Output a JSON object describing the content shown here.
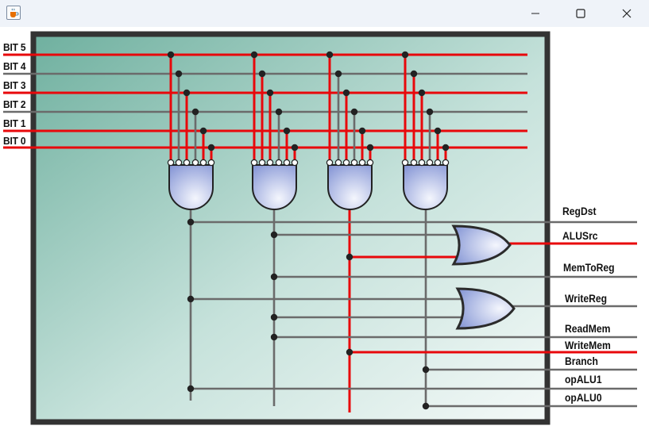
{
  "window": {
    "app_icon": "java-cup-icon",
    "minimize_icon": "minimize-icon",
    "maximize_icon": "maximize-icon",
    "close_icon": "close-icon"
  },
  "inputs": [
    "BIT 5",
    "BIT 4",
    "BIT 3",
    "BIT 2",
    "BIT 1",
    "BIT 0"
  ],
  "outputs": [
    "RegDst",
    "ALUSrc",
    "MemToReg",
    "WriteReg",
    "ReadMem",
    "WriteMem",
    "Branch",
    "opALU1",
    "opALU0"
  ],
  "colors": {
    "active_wire": "#e8080b",
    "inactive_wire": "#6b6b6b",
    "panel_border": "#333333",
    "panel_gradient_dark": "#6fb09f",
    "panel_gradient_light": "#f4f9f8",
    "gate_fill_light": "#eef2fc",
    "gate_fill_dark": "#8797d6"
  },
  "input_states": [
    1,
    0,
    1,
    0,
    1,
    1
  ],
  "gate_connections": [
    [
      1,
      0,
      1,
      0,
      1,
      1
    ],
    [
      1,
      1,
      1,
      0,
      1,
      1
    ],
    [
      1,
      0,
      1,
      0,
      1,
      1
    ],
    [
      1,
      1,
      1,
      0,
      1,
      1
    ]
  ],
  "output_states": [
    0,
    1,
    0,
    0,
    0,
    1,
    0,
    0,
    0
  ]
}
